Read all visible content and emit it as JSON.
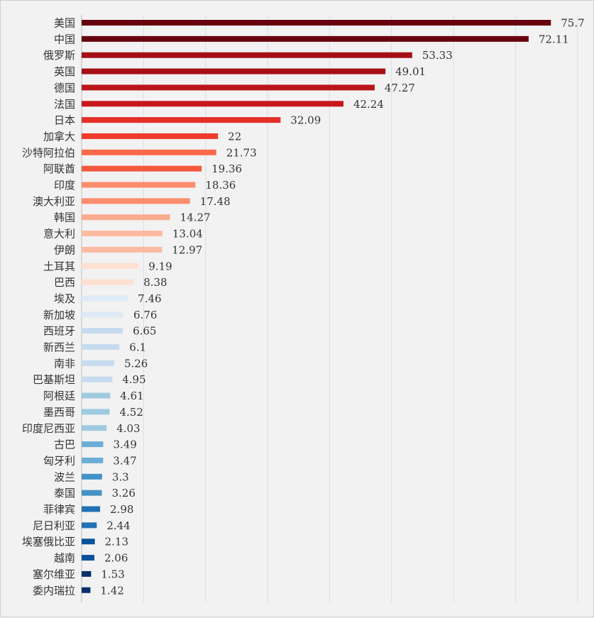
{
  "chart_data": {
    "type": "bar",
    "orientation": "horizontal",
    "title": "",
    "xlabel": "",
    "ylabel": "",
    "xlim": [
      0,
      80
    ],
    "grid": true,
    "legend": "none",
    "categories": [
      "美国",
      "中国",
      "俄罗斯",
      "英国",
      "德国",
      "法国",
      "日本",
      "加拿大",
      "沙特阿拉伯",
      "阿联酋",
      "印度",
      "澳大利亚",
      "韩国",
      "意大利",
      "伊朗",
      "土耳其",
      "巴西",
      "埃及",
      "新加坡",
      "西班牙",
      "新西兰",
      "南非",
      "巴基斯坦",
      "阿根廷",
      "墨西哥",
      "印度尼西亚",
      "古巴",
      "匈牙利",
      "波兰",
      "泰国",
      "菲律宾",
      "尼日利亚",
      "埃塞俄比亚",
      "越南",
      "塞尔维亚",
      "委内瑞拉"
    ],
    "values": [
      75.7,
      72.11,
      53.33,
      49.01,
      47.27,
      42.24,
      32.09,
      22,
      21.73,
      19.36,
      18.36,
      17.48,
      14.27,
      13.04,
      12.97,
      9.19,
      8.38,
      7.46,
      6.76,
      6.65,
      6.1,
      5.26,
      4.95,
      4.61,
      4.52,
      4.03,
      3.49,
      3.47,
      3.3,
      3.26,
      2.98,
      2.44,
      2.13,
      2.06,
      1.53,
      1.42
    ],
    "value_labels": [
      "75.7",
      "72.11",
      "53.33",
      "49.01",
      "47.27",
      "42.24",
      "32.09",
      "22",
      "21.73",
      "19.36",
      "18.36",
      "17.48",
      "14.27",
      "13.04",
      "12.97",
      "9.19",
      "8.38",
      "7.46",
      "6.76",
      "6.65",
      "6.1",
      "5.26",
      "4.95",
      "4.61",
      "4.52",
      "4.03",
      "3.49",
      "3.47",
      "3.3",
      "3.26",
      "2.98",
      "2.44",
      "2.13",
      "2.06",
      "1.53",
      "1.42"
    ],
    "colors": [
      "#67000d",
      "#67000d",
      "#a50f15",
      "#a50f15",
      "#bb141a",
      "#c8171c",
      "#e32f27",
      "#ef3b2c",
      "#fb6a4a",
      "#f6573f",
      "#fc8d6d",
      "#fc8d6d",
      "#fcab8f",
      "#fcbba1",
      "#fcbba1",
      "#fee0d2",
      "#fee0d2",
      "#deebf7",
      "#deebf7",
      "#c6dbef",
      "#c6dbef",
      "#c6dbef",
      "#c6dbef",
      "#9ecae1",
      "#9ecae1",
      "#9ecae1",
      "#6baed6",
      "#6baed6",
      "#4292c6",
      "#4292c6",
      "#2171b5",
      "#2171b5",
      "#08519c",
      "#08519c",
      "#08306b",
      "#08306b"
    ]
  }
}
